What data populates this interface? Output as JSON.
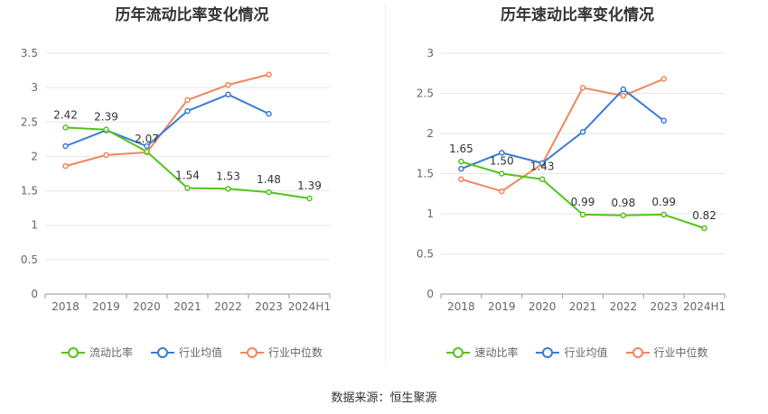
{
  "colors": {
    "company": "#52c41a",
    "industry_avg": "#3a7bd5",
    "industry_median": "#f0855c"
  },
  "legend_icon": "circle-line",
  "source": "数据来源：恒生聚源",
  "chart_data": [
    {
      "type": "line",
      "title": "历年流动比率变化情况",
      "categories": [
        "2018",
        "2019",
        "2020",
        "2021",
        "2022",
        "2023",
        "2024H1"
      ],
      "ylim": [
        0,
        3.5
      ],
      "yticks": [
        "0",
        "0.5",
        "1",
        "1.5",
        "2",
        "2.5",
        "3",
        "3.5"
      ],
      "grid": true,
      "legend_position": "bottom",
      "series": [
        {
          "name": "流动比率",
          "role": "company",
          "values": [
            2.42,
            2.39,
            2.07,
            1.54,
            1.53,
            1.48,
            1.39
          ],
          "labels": [
            "2.42",
            "2.39",
            "2.07",
            "1.54",
            "1.53",
            "1.48",
            "1.39"
          ]
        },
        {
          "name": "行业均值",
          "role": "industry_avg",
          "values": [
            2.15,
            2.38,
            2.15,
            2.66,
            2.9,
            2.62,
            null
          ]
        },
        {
          "name": "行业中位数",
          "role": "industry_median",
          "values": [
            1.86,
            2.02,
            2.06,
            2.82,
            3.04,
            3.19,
            null
          ]
        }
      ]
    },
    {
      "type": "line",
      "title": "历年速动比率变化情况",
      "categories": [
        "2018",
        "2019",
        "2020",
        "2021",
        "2022",
        "2023",
        "2024H1"
      ],
      "ylim": [
        0,
        3
      ],
      "yticks": [
        "0",
        "0.5",
        "1",
        "1.5",
        "2",
        "2.5",
        "3"
      ],
      "grid": true,
      "legend_position": "bottom",
      "series": [
        {
          "name": "速动比率",
          "role": "company",
          "values": [
            1.65,
            1.5,
            1.43,
            0.99,
            0.98,
            0.99,
            0.82
          ],
          "labels": [
            "1.65",
            "1.50",
            "1.43",
            "0.99",
            "0.98",
            "0.99",
            "0.82"
          ]
        },
        {
          "name": "行业均值",
          "role": "industry_avg",
          "values": [
            1.56,
            1.76,
            1.63,
            2.02,
            2.55,
            2.16,
            null
          ]
        },
        {
          "name": "行业中位数",
          "role": "industry_median",
          "values": [
            1.43,
            1.28,
            1.62,
            2.57,
            2.47,
            2.68,
            null
          ]
        }
      ]
    }
  ]
}
